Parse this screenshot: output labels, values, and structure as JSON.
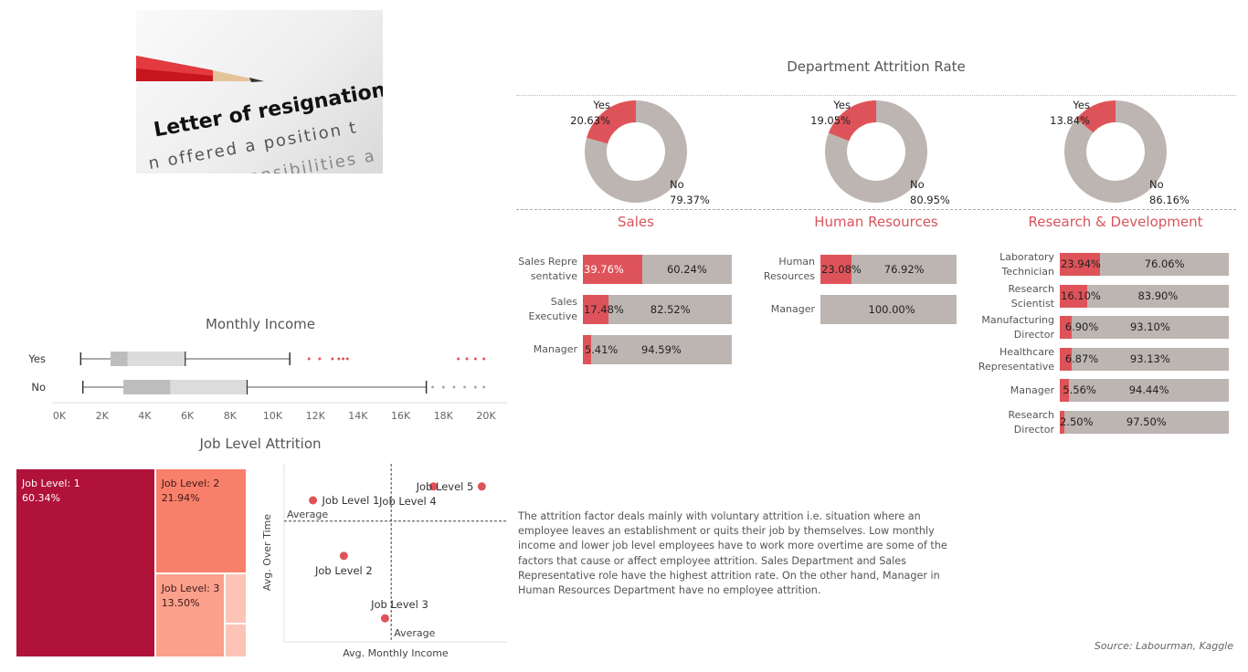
{
  "photo": {
    "lines": [
      "Letter of resignation",
      "n offered a position t",
      "esponsibilities a"
    ]
  },
  "dept_title": "Department Attrition Rate",
  "source": "Source: Labourman, Kaggle",
  "description": "The attrition factor deals mainly with voluntary attrition i.e. situation where an employee leaves an establishment or quits their job by themselves. Low  monthly income and lower job level  employees have to work more overtime are some of the factors that cause or affect employee attrition. Sales Department  and Sales Representative role have the highest attrition rate. On the other hand, Manager in Human Resources Department have no employee attrition.",
  "colors": {
    "yes": "#de5359",
    "no": "#bcb5b2",
    "level1": "#b01239",
    "level2": "#f8806a",
    "level3": "#fba08b",
    "level45": "#fcc4b6"
  },
  "chart_data": [
    {
      "type": "pie",
      "title": "Sales",
      "labels": [
        "Yes",
        "No"
      ],
      "values": [
        20.63,
        79.37
      ],
      "value_labels": [
        "20.63%",
        "79.37%"
      ]
    },
    {
      "type": "pie",
      "title": "Human Resources",
      "labels": [
        "Yes",
        "No"
      ],
      "values": [
        19.05,
        80.95
      ],
      "value_labels": [
        "19.05%",
        "80.95%"
      ]
    },
    {
      "type": "pie",
      "title": "Research & Development",
      "labels": [
        "Yes",
        "No"
      ],
      "values": [
        13.84,
        86.16
      ],
      "value_labels": [
        "13.84%",
        "86.16%"
      ]
    },
    {
      "type": "bar",
      "department": "Sales",
      "categories": [
        "Sales Repre sentative",
        "Sales Executive",
        "Manager"
      ],
      "series": [
        {
          "name": "Yes",
          "values": [
            39.76,
            17.48,
            5.41
          ],
          "labels": [
            "39.76%",
            "17.48%",
            "5.41%"
          ]
        },
        {
          "name": "No",
          "values": [
            60.24,
            82.52,
            94.59
          ],
          "labels": [
            "60.24%",
            "82.52%",
            "94.59%"
          ]
        }
      ]
    },
    {
      "type": "bar",
      "department": "Human Resources",
      "categories": [
        "Human Resources",
        "Manager"
      ],
      "series": [
        {
          "name": "Yes",
          "values": [
            23.08,
            0
          ],
          "labels": [
            "23.08%",
            ""
          ]
        },
        {
          "name": "No",
          "values": [
            76.92,
            100.0
          ],
          "labels": [
            "76.92%",
            "100.00%"
          ]
        }
      ]
    },
    {
      "type": "bar",
      "department": "Research & Development",
      "categories": [
        "Laboratory Technician",
        "Research Scientist",
        "Manufacturing Director",
        "Healthcare Representative",
        "Manager",
        "Research Director"
      ],
      "series": [
        {
          "name": "Yes",
          "values": [
            23.94,
            16.1,
            6.9,
            6.87,
            5.56,
            2.5
          ],
          "labels": [
            "23.94%",
            "16.10%",
            "6.90%",
            "6.87%",
            "5.56%",
            "2.50%"
          ]
        },
        {
          "name": "No",
          "values": [
            76.06,
            83.9,
            93.1,
            93.13,
            94.44,
            97.5
          ],
          "labels": [
            "76.06%",
            "83.90%",
            "93.10%",
            "93.13%",
            "94.44%",
            "97.50%"
          ]
        }
      ]
    },
    {
      "type": "boxplot",
      "title": "Monthly Income",
      "categories": [
        "Yes",
        "No"
      ],
      "xlim": [
        0,
        20000
      ],
      "xticks": [
        "0K",
        "2K",
        "4K",
        "6K",
        "8K",
        "10K",
        "12K",
        "14K",
        "16K",
        "18K",
        "20K"
      ],
      "boxes": [
        {
          "name": "Yes",
          "min": 1000,
          "q1": 2400,
          "median": 3200,
          "q3": 5900,
          "max": 10800,
          "outliers": [
            11700,
            12200,
            12800,
            13100,
            13300,
            13500,
            18700,
            19100,
            19500,
            19900
          ]
        },
        {
          "name": "No",
          "min": 1100,
          "q1": 3000,
          "median": 5200,
          "q3": 8800,
          "max": 17200,
          "outliers": [
            17500,
            18000,
            18500,
            19000,
            19500,
            19900
          ]
        }
      ]
    },
    {
      "type": "heatmap",
      "title": "Job Level Attrition",
      "labels": [
        "Job Level: 1",
        "Job Level: 2",
        "Job Level: 3",
        "Job Level: 4",
        "Job Level: 5"
      ],
      "values": [
        60.34,
        21.94,
        13.5,
        2.5,
        1.7
      ],
      "value_labels": [
        "60.34%",
        "21.94%",
        "13.50%",
        "",
        ""
      ]
    },
    {
      "type": "scatter",
      "xlabel": "Avg. Monthly Income",
      "ylabel": "Avg. Over Time",
      "reference_label": "Average",
      "points": [
        {
          "label": "Job Level 1",
          "x": 2800,
          "y": 38
        },
        {
          "label": "Job Level 2",
          "x": 5800,
          "y": 30
        },
        {
          "label": "Job Level 3",
          "x": 9800,
          "y": 21
        },
        {
          "label": "Job Level 4",
          "x": 14500,
          "y": 40
        },
        {
          "label": "Job Level 5",
          "x": 19200,
          "y": 40
        }
      ],
      "avg_x": 10400,
      "avg_y": 35
    }
  ]
}
